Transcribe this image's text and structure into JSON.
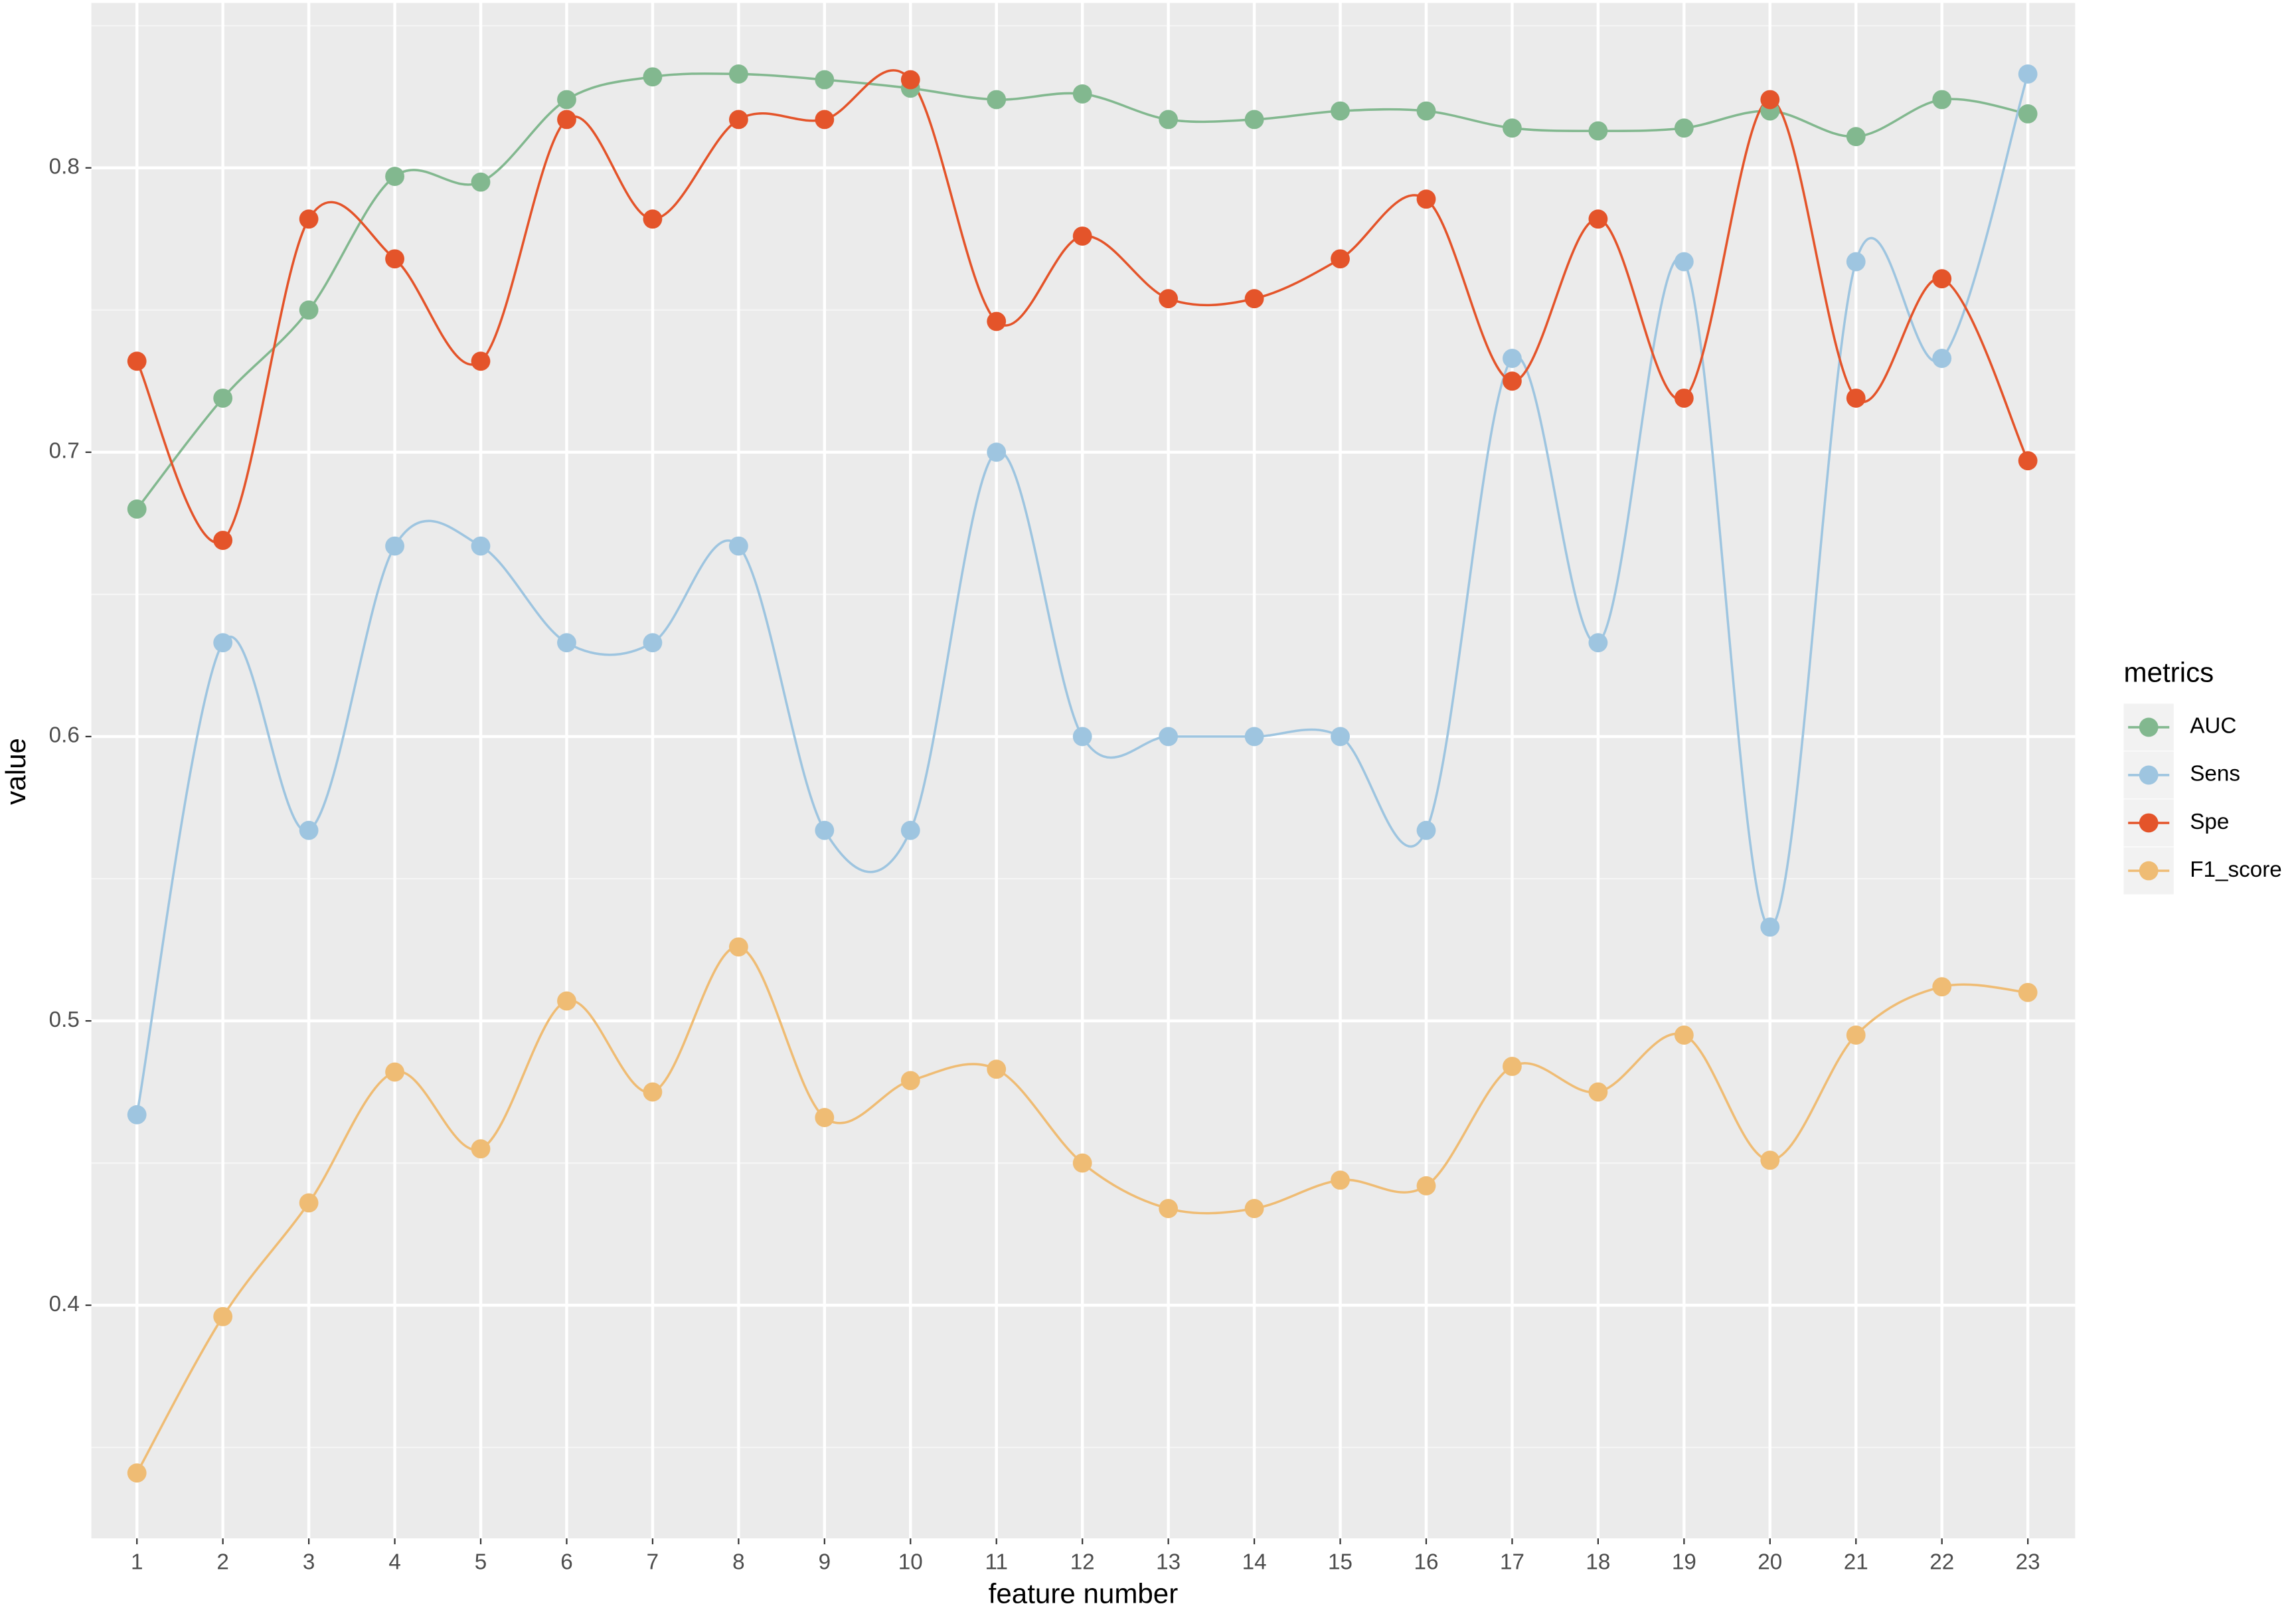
{
  "chart_data": {
    "type": "line",
    "smooth": true,
    "grid": true,
    "legend_position": "right",
    "x_label": "feature number",
    "y_label": "value",
    "legend_title": "metrics",
    "x": [
      1,
      2,
      3,
      4,
      5,
      6,
      7,
      8,
      9,
      10,
      11,
      12,
      13,
      14,
      15,
      16,
      17,
      18,
      19,
      20,
      21,
      22,
      23
    ],
    "xlim": [
      0.47,
      23.55
    ],
    "xticks": [
      1,
      2,
      3,
      4,
      5,
      6,
      7,
      8,
      9,
      10,
      11,
      12,
      13,
      14,
      15,
      16,
      17,
      18,
      19,
      20,
      21,
      22,
      23
    ],
    "ylim": [
      0.318,
      0.858
    ],
    "yticks": [
      0.4,
      0.5,
      0.6,
      0.7,
      0.8
    ],
    "series": [
      {
        "name": "AUC",
        "color": "#82b88f",
        "values": [
          0.68,
          0.719,
          0.75,
          0.797,
          0.795,
          0.824,
          0.832,
          0.833,
          0.831,
          0.828,
          0.824,
          0.826,
          0.817,
          0.817,
          0.82,
          0.82,
          0.814,
          0.813,
          0.814,
          0.82,
          0.811,
          0.824,
          0.819
        ]
      },
      {
        "name": "Sens",
        "color": "#9ec5e0",
        "values": [
          0.467,
          0.633,
          0.567,
          0.667,
          0.667,
          0.633,
          0.633,
          0.667,
          0.567,
          0.567,
          0.7,
          0.6,
          0.6,
          0.6,
          0.6,
          0.567,
          0.733,
          0.633,
          0.767,
          0.533,
          0.767,
          0.733,
          0.833
        ]
      },
      {
        "name": "Spe",
        "color": "#e4542a",
        "values": [
          0.732,
          0.669,
          0.782,
          0.768,
          0.732,
          0.817,
          0.782,
          0.817,
          0.817,
          0.831,
          0.746,
          0.776,
          0.754,
          0.754,
          0.768,
          0.789,
          0.725,
          0.782,
          0.719,
          0.824,
          0.719,
          0.761,
          0.697
        ]
      },
      {
        "name": "F1_score",
        "color": "#efbc74",
        "values": [
          0.341,
          0.396,
          0.436,
          0.482,
          0.455,
          0.507,
          0.475,
          0.526,
          0.466,
          0.479,
          0.483,
          0.45,
          0.434,
          0.434,
          0.444,
          0.442,
          0.484,
          0.475,
          0.495,
          0.451,
          0.495,
          0.512,
          0.51
        ]
      }
    ]
  }
}
